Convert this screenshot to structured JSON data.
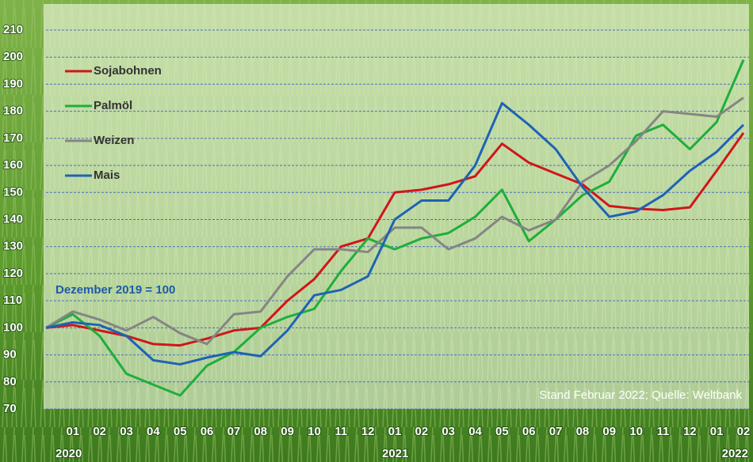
{
  "chart_data": {
    "type": "line",
    "categories": [
      null,
      "01",
      "02",
      "03",
      "04",
      "05",
      "06",
      "07",
      "08",
      "09",
      "10",
      "11",
      "12",
      "01",
      "02",
      "03",
      "04",
      "05",
      "06",
      "07",
      "08",
      "09",
      "10",
      "11",
      "12",
      "01",
      "02"
    ],
    "year_labels": [
      "2020",
      "2021",
      "2022"
    ],
    "series": [
      {
        "name": "Sojabohnen",
        "color": "#d0161b",
        "values": [
          100,
          101,
          99,
          97,
          94,
          93.5,
          96,
          99,
          100,
          110,
          118,
          130,
          133,
          150,
          151,
          153,
          156,
          168,
          161,
          157,
          153,
          145,
          144,
          143.5,
          144.5,
          158,
          172
        ]
      },
      {
        "name": "Palmöl",
        "color": "#1fae3c",
        "values": [
          100,
          105,
          97,
          83,
          79,
          75,
          86,
          91,
          100,
          104,
          107,
          121,
          133,
          129,
          133,
          135,
          141,
          151,
          132,
          140,
          149,
          154,
          171,
          175,
          166,
          176,
          199
        ]
      },
      {
        "name": "Weizen",
        "color": "#858585",
        "values": [
          100,
          106,
          103,
          99,
          104,
          98,
          94,
          105,
          106,
          119,
          129,
          129,
          128,
          137,
          137,
          129,
          133,
          141,
          136,
          140,
          154,
          160,
          169,
          180,
          179,
          178,
          185
        ]
      },
      {
        "name": "Mais",
        "color": "#1f62b5",
        "values": [
          100,
          102,
          101,
          97,
          88,
          86.5,
          89,
          91,
          89.5,
          99,
          112,
          114,
          119,
          140,
          147,
          147,
          160,
          183,
          175,
          166,
          152,
          141,
          143,
          149,
          158,
          165,
          175
        ]
      }
    ],
    "ylim": [
      70,
      210
    ],
    "yticks": [
      70,
      80,
      90,
      100,
      110,
      120,
      130,
      140,
      150,
      160,
      170,
      180,
      190,
      200,
      210
    ],
    "grid": true,
    "annotations": [
      "Dezember 2019 = 100",
      "Stand Februar 2022; Quelle: Weltbank"
    ]
  }
}
